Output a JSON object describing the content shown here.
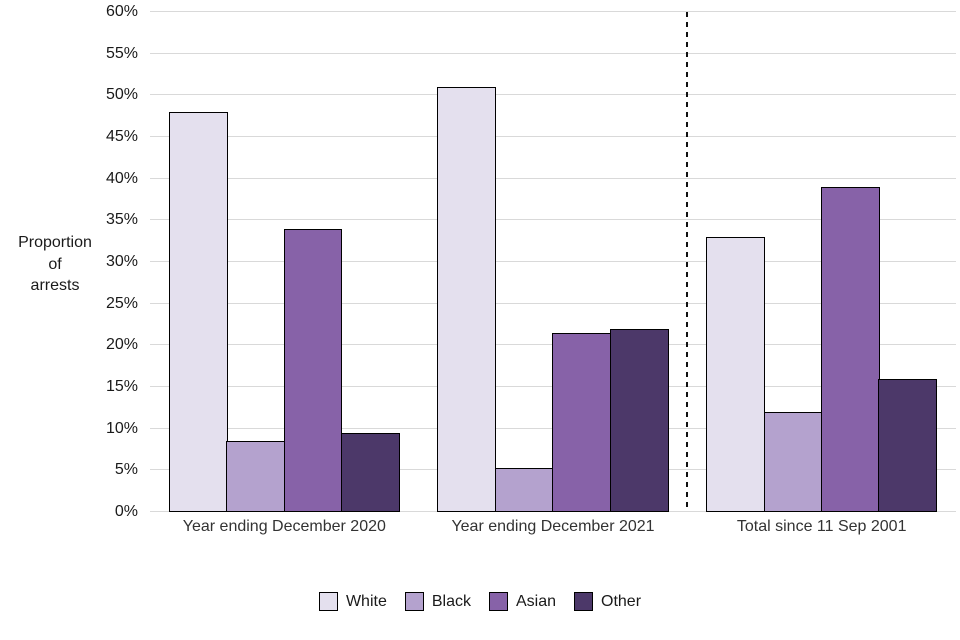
{
  "chart_data": {
    "type": "bar",
    "title": "",
    "ylabel": "Proportion\nof\narrests",
    "xlabel": "",
    "categories": [
      "Year ending December 2020",
      "Year ending December 2021",
      "Total since 11 Sep 2001"
    ],
    "series": [
      {
        "name": "White",
        "color": "#E4E0EE",
        "values": [
          48,
          51,
          33
        ]
      },
      {
        "name": "Black",
        "color": "#B4A2CE",
        "values": [
          8.5,
          5.3,
          12
        ]
      },
      {
        "name": "Asian",
        "color": "#8762A8",
        "values": [
          34,
          21.5,
          39
        ]
      },
      {
        "name": "Other",
        "color": "#4C3869",
        "values": [
          9.5,
          22,
          16
        ]
      }
    ],
    "ylim": [
      0,
      60
    ],
    "ytick_step": 5,
    "ytick_suffix": "%",
    "grid": true,
    "legend_position": "bottom",
    "separator_after_category_index": 1,
    "separator_style": "dashed-black-vertical"
  }
}
